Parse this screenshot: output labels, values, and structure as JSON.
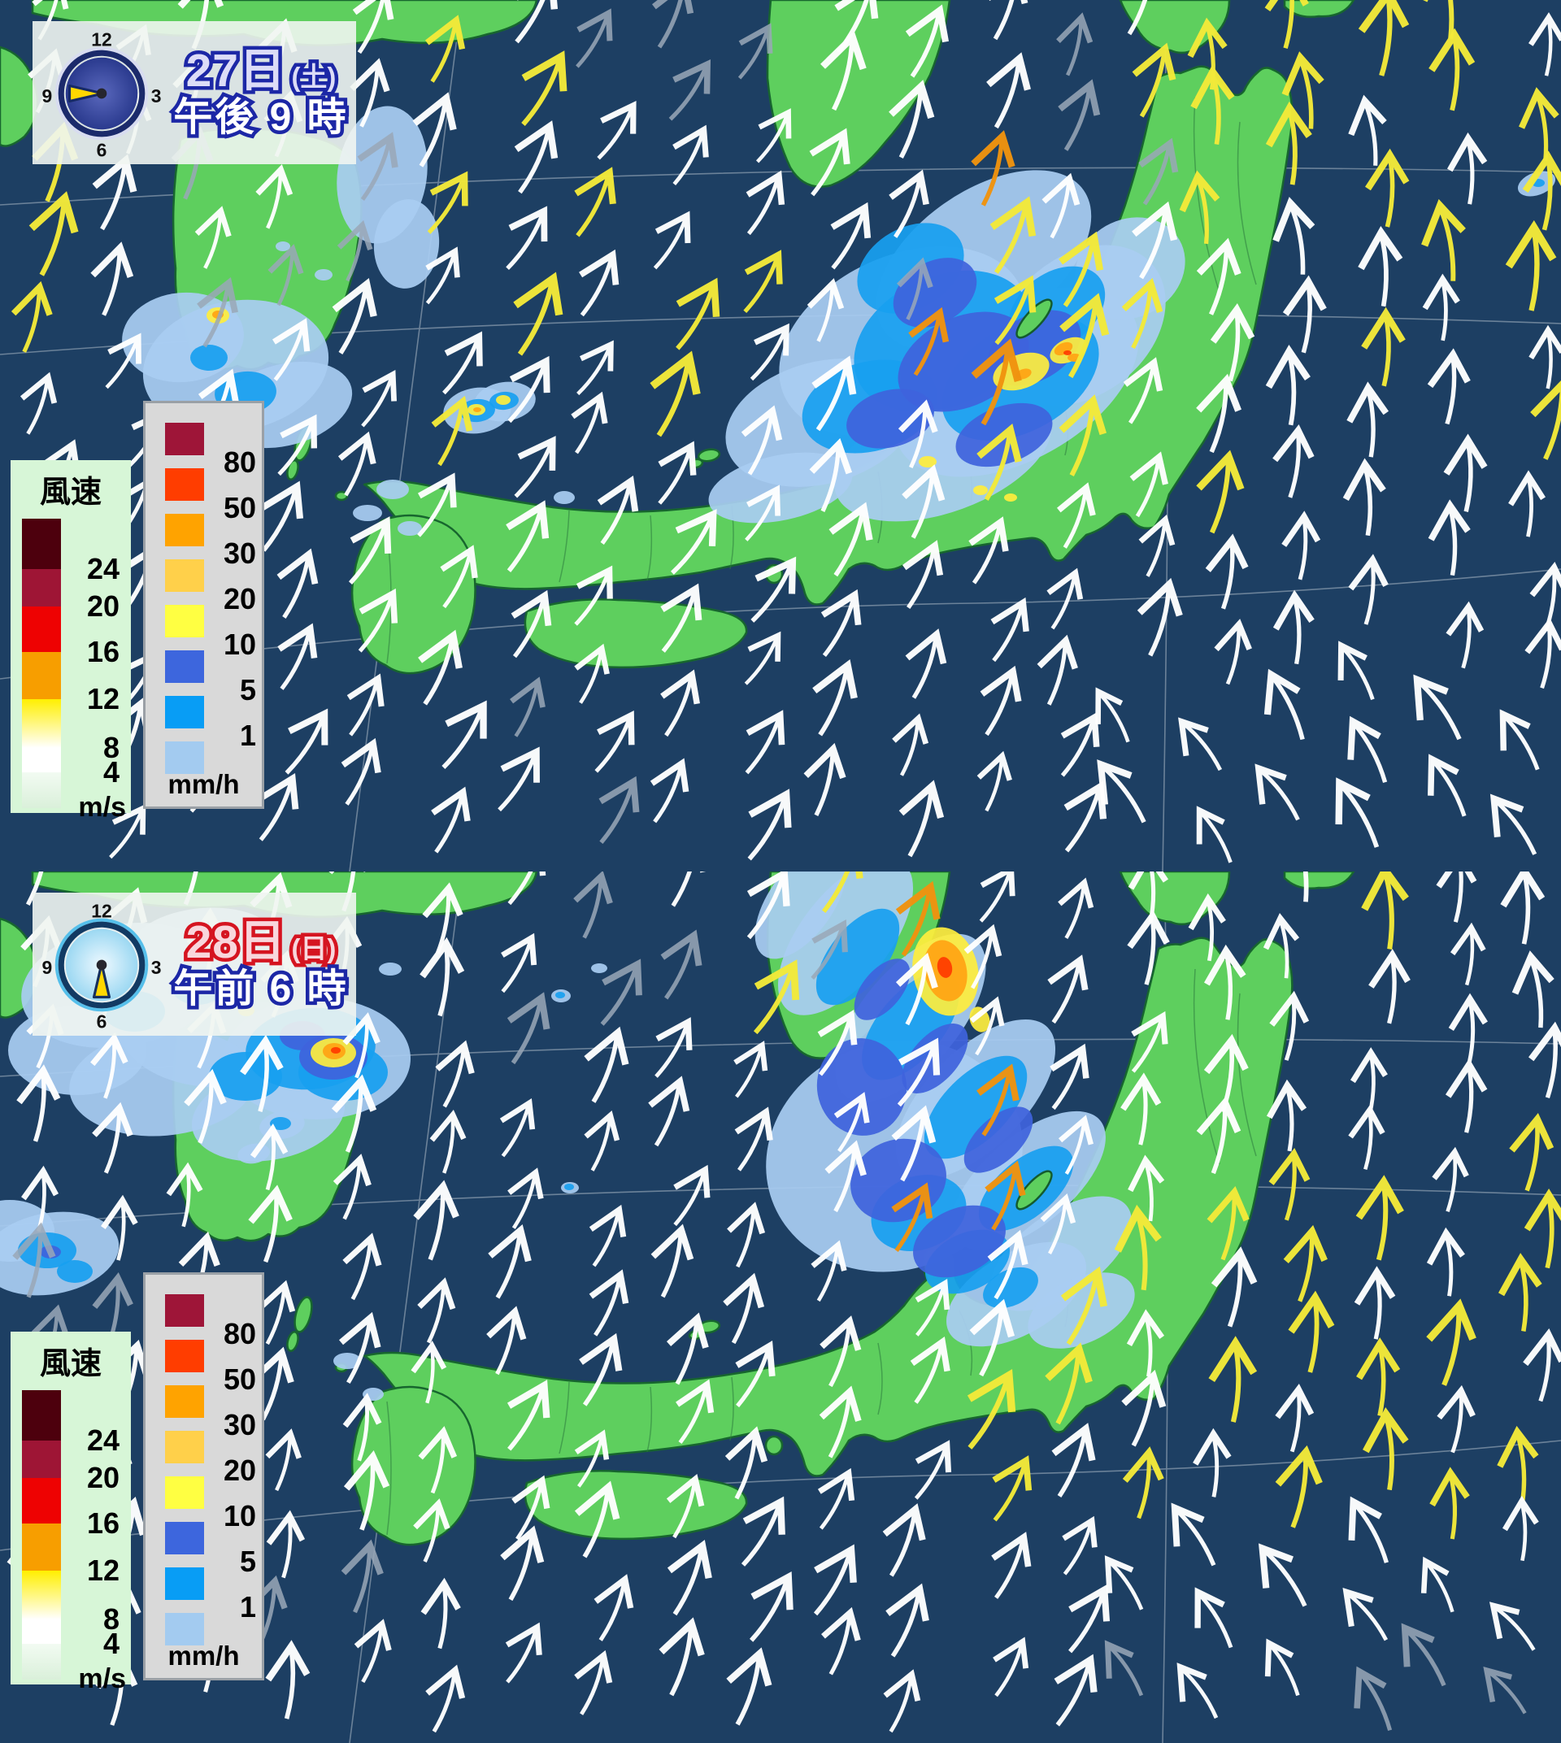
{
  "panels": [
    {
      "name": "saturday-9pm",
      "date": "27日",
      "weekday": "(土)",
      "time": "午後 9 時",
      "date_fill": "#dcdcf7",
      "date_stroke": "#1c27a6",
      "time_fill": "#ffffff",
      "time_stroke": "#1c27a6",
      "clock": {
        "labels": [
          "12",
          "3",
          "6",
          "9"
        ],
        "hand_angle": 270,
        "theme": "night"
      }
    },
    {
      "name": "sunday-6am",
      "date": "28日",
      "weekday": "(日)",
      "time": "午前 6 時",
      "date_fill": "#f8d6dc",
      "date_stroke": "#d51420",
      "time_fill": "#ffffff",
      "time_stroke": "#1c27a6",
      "clock": {
        "labels": [
          "12",
          "3",
          "6",
          "9"
        ],
        "hand_angle": 180,
        "theme": "day"
      }
    }
  ],
  "wind_legend": {
    "title": "風速",
    "unit": "m/s",
    "tick_labels": [
      "24",
      "20",
      "16",
      "12",
      "8",
      "4"
    ],
    "colors": [
      "#4d000d",
      "#9e1535",
      "#ee0202",
      "#f79e00",
      "#ffef00",
      "#ffffff",
      "#daf0da"
    ]
  },
  "precip_legend": {
    "unit": "mm/h",
    "tick_labels": [
      "80",
      "50",
      "30",
      "20",
      "10",
      "5",
      "1"
    ],
    "colors": [
      "#9e1538",
      "#ff3d00",
      "#ffa300",
      "#ffd04a",
      "#ffff42",
      "#3d66dd",
      "#089df5",
      "#a3cbf0"
    ]
  },
  "map_colors": {
    "ocean": "#1d3f63",
    "land": "#5ecf5e",
    "land_outline": "#17662e",
    "graticule": "#ffffff",
    "rain_pale": "#a9cdf2",
    "rain_bright": "#18a0f0",
    "rain_royal": "#3f63dc",
    "rain_yellow": "#ffee3d",
    "rain_orange": "#ffa312",
    "rain_red": "#ff3b00"
  },
  "arrow_colors": {
    "white": "#ffffff",
    "gray": "#9aa8b8",
    "yellow": "#f3ea39",
    "orange": "#f0930f"
  },
  "clock_themes": {
    "night": {
      "ring": "#1b2a6b",
      "rim": "#d8dcf0",
      "face_in": "#5a68bd",
      "face_out": "#2a3a8e",
      "hand": "#ffd700",
      "hand_edge": "#162a66"
    },
    "day": {
      "ring": "#123a63",
      "rim": "#56bfea",
      "face_in": "#eef9ff",
      "face_out": "#9cd8f2",
      "hand": "#ffd700",
      "hand_edge": "#16305e"
    }
  }
}
